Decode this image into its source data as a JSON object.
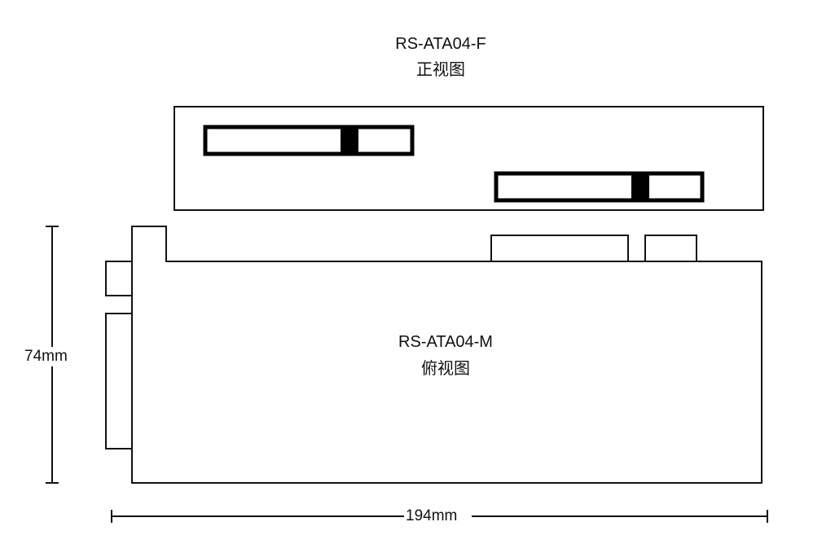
{
  "front_view": {
    "model": "RS-ATA04-F",
    "view_name": "正视图"
  },
  "top_view": {
    "model": "RS-ATA04-M",
    "view_name": "俯视图"
  },
  "dimensions": {
    "height": "74mm",
    "width": "194mm"
  },
  "colors": {
    "line": "#111111",
    "connector_key": "#000000",
    "background": "#ffffff"
  }
}
